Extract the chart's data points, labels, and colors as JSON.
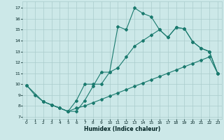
{
  "xlabel": "Humidex (Indice chaleur)",
  "background_color": "#cce8e8",
  "grid_color": "#aacccc",
  "line_color": "#1a7a6e",
  "xlim": [
    -0.5,
    23.5
  ],
  "ylim": [
    6.8,
    17.6
  ],
  "xticks": [
    0,
    1,
    2,
    3,
    4,
    5,
    6,
    7,
    8,
    9,
    10,
    11,
    12,
    13,
    14,
    15,
    16,
    17,
    18,
    19,
    20,
    21,
    22,
    23
  ],
  "yticks": [
    7,
    8,
    9,
    10,
    11,
    12,
    13,
    14,
    15,
    16,
    17
  ],
  "line1_x": [
    0,
    1,
    2,
    3,
    4,
    5,
    6,
    7,
    8,
    9,
    10,
    11,
    12,
    13,
    14,
    15,
    16,
    17,
    18,
    19,
    20,
    21,
    22,
    23
  ],
  "line1_y": [
    9.9,
    9.0,
    8.4,
    8.1,
    7.8,
    7.5,
    7.5,
    8.5,
    9.8,
    11.1,
    11.1,
    15.3,
    15.0,
    17.0,
    16.5,
    16.2,
    15.0,
    14.3,
    15.2,
    15.1,
    13.9,
    13.3,
    13.0,
    11.0
  ],
  "line2_x": [
    2,
    3,
    4,
    5,
    6,
    7,
    8,
    9,
    10,
    11,
    12,
    13,
    14,
    15,
    16,
    17,
    18,
    19,
    20,
    21,
    22,
    23
  ],
  "line2_y": [
    8.4,
    8.1,
    7.8,
    7.5,
    8.5,
    10.0,
    10.0,
    10.0,
    11.1,
    11.5,
    12.5,
    13.5,
    14.0,
    14.5,
    15.0,
    14.3,
    15.2,
    15.1,
    13.9,
    13.3,
    13.0,
    11.0
  ],
  "line3_x": [
    0,
    2,
    3,
    4,
    5,
    6,
    7,
    8,
    9,
    10,
    11,
    12,
    13,
    14,
    15,
    16,
    17,
    18,
    19,
    20,
    21,
    22,
    23
  ],
  "line3_y": [
    9.9,
    8.4,
    8.1,
    7.8,
    7.5,
    7.8,
    8.0,
    8.3,
    8.6,
    8.9,
    9.2,
    9.5,
    9.8,
    10.1,
    10.4,
    10.7,
    11.0,
    11.3,
    11.6,
    11.9,
    12.2,
    12.5,
    11.0
  ]
}
